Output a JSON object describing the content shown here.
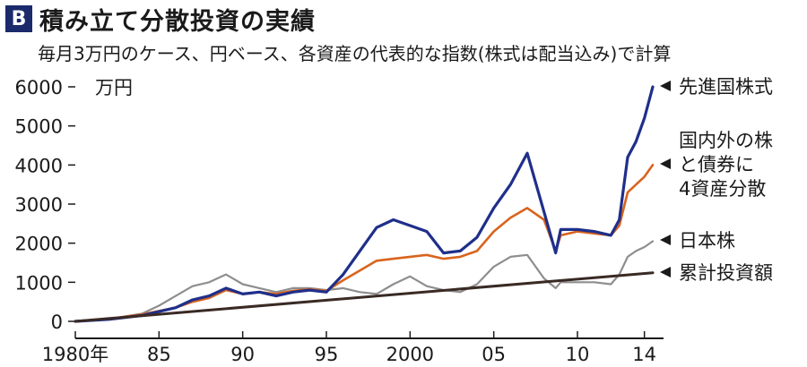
{
  "header": {
    "badge": "B",
    "title": "積み立て分散投資の実績",
    "subtitle": "毎月3万円のケース、円ベース、各資産の代表的な指数(株式は配当込み)で計算"
  },
  "chart_data": {
    "type": "line",
    "title": "積み立て分散投資の実績",
    "subtitle": "毎月3万円のケース、円ベース、各資産の代表的な指数(株式は配当込み)で計算",
    "ylabel": "万円",
    "xlabel": "",
    "xlim": [
      1980,
      2014.5
    ],
    "ylim": [
      0,
      6000
    ],
    "x_ticks": [
      1980,
      1985,
      1990,
      1995,
      2000,
      2005,
      2010,
      2014
    ],
    "x_tick_labels": [
      "1980年",
      "85",
      "90",
      "95",
      "2000",
      "05",
      "10",
      "14"
    ],
    "y_ticks": [
      0,
      1000,
      2000,
      3000,
      4000,
      5000,
      6000
    ],
    "y_tick_labels": [
      "0",
      "1000",
      "2000",
      "3000",
      "4000",
      "5000",
      "6000"
    ],
    "grid": false,
    "legend_position": "right, inline at line ends",
    "series": [
      {
        "name": "先進国株式",
        "color": "#1f2f8a",
        "x": [
          1980,
          1982,
          1984,
          1986,
          1987,
          1988,
          1989,
          1990,
          1991,
          1992,
          1993,
          1994,
          1995,
          1996,
          1997,
          1998,
          1999,
          2000,
          2001,
          2002,
          2003,
          2004,
          2005,
          2006,
          2007,
          2008,
          2008.7,
          2009,
          2010,
          2011,
          2012,
          2012.5,
          2013,
          2013.5,
          2014,
          2014.5
        ],
        "values": [
          0,
          50,
          150,
          350,
          550,
          650,
          850,
          700,
          750,
          650,
          750,
          800,
          750,
          1200,
          1800,
          2400,
          2600,
          2450,
          2300,
          1750,
          1800,
          2150,
          2900,
          3500,
          4300,
          2800,
          1750,
          2350,
          2350,
          2300,
          2200,
          2600,
          4200,
          4600,
          5200,
          6000
        ]
      },
      {
        "name": "国内外の株と債券に4資産分散",
        "color": "#d8641e",
        "x": [
          1980,
          1982,
          1984,
          1986,
          1987,
          1988,
          1989,
          1990,
          1991,
          1992,
          1993,
          1994,
          1995,
          1996,
          1997,
          1998,
          1999,
          2000,
          2001,
          2002,
          2003,
          2004,
          2005,
          2006,
          2007,
          2008,
          2008.7,
          2009,
          2010,
          2011,
          2012,
          2012.5,
          2013,
          2013.5,
          2014,
          2014.5
        ],
        "values": [
          0,
          60,
          180,
          350,
          500,
          600,
          800,
          700,
          750,
          700,
          780,
          820,
          780,
          1050,
          1300,
          1550,
          1600,
          1650,
          1700,
          1600,
          1650,
          1800,
          2300,
          2650,
          2900,
          2600,
          1800,
          2200,
          2300,
          2250,
          2200,
          2450,
          3300,
          3500,
          3700,
          4000
        ]
      },
      {
        "name": "日本株",
        "color": "#8e8e8e",
        "x": [
          1980,
          1982,
          1984,
          1985,
          1986,
          1987,
          1988,
          1989,
          1990,
          1991,
          1992,
          1993,
          1994,
          1995,
          1996,
          1997,
          1998,
          1999,
          2000,
          2001,
          2002,
          2003,
          2004,
          2005,
          2006,
          2007,
          2008,
          2008.7,
          2009,
          2010,
          2011,
          2012,
          2012.5,
          2013,
          2013.5,
          2014,
          2014.5
        ],
        "values": [
          0,
          60,
          200,
          400,
          650,
          900,
          1000,
          1200,
          950,
          850,
          750,
          850,
          850,
          800,
          850,
          750,
          700,
          950,
          1150,
          900,
          800,
          750,
          950,
          1400,
          1650,
          1700,
          1100,
          850,
          1000,
          1000,
          1000,
          950,
          1200,
          1650,
          1800,
          1900,
          2050
        ]
      },
      {
        "name": "累計投資額",
        "color": "#3a2a24",
        "x": [
          1980,
          2014.5
        ],
        "values": [
          0,
          1242
        ]
      }
    ]
  },
  "legend": {
    "developed": "先進国株式",
    "diversified_lines": [
      "国内外の株",
      "と債券に",
      "4資産分散"
    ],
    "japan": "日本株",
    "cumulative": "累計投資額"
  }
}
